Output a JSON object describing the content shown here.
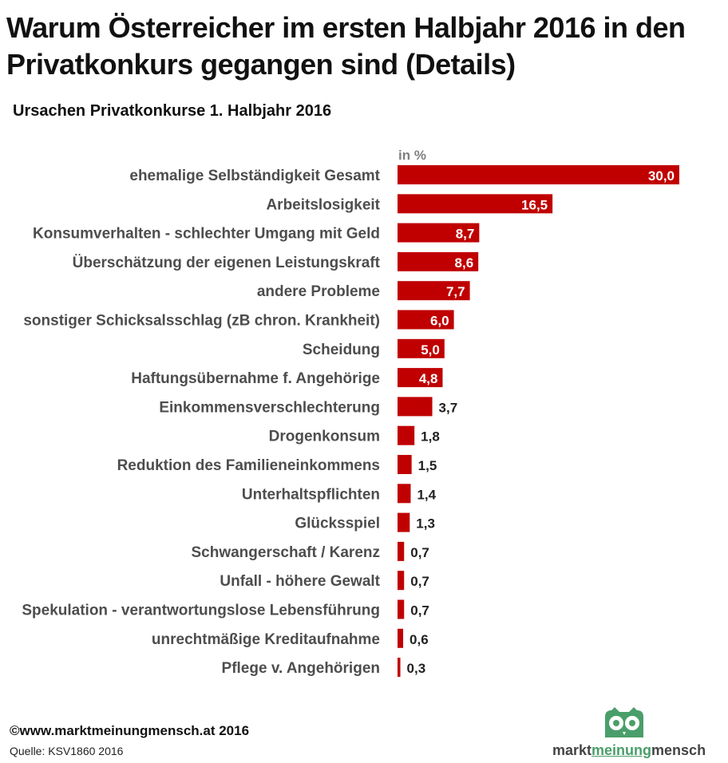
{
  "title": "Warum Österreicher im ersten Halbjahr 2016 in den Privatkonkurs gegangen sind (Details)",
  "subtitle": "Ursachen Privatkonkurse 1. Halbjahr 2016",
  "footer": {
    "copyright": "©www.marktmeinungmensch.at 2016",
    "source": "Quelle: KSV1860 2016",
    "logo_text_part1": "markt",
    "logo_text_part2": "meinung",
    "logo_text_part3": "mensch"
  },
  "colors": {
    "bar": "#c00000",
    "brand_green": "#4a9e6a"
  },
  "chart_data": {
    "type": "bar",
    "orientation": "horizontal",
    "unit_label": "in %",
    "categories": [
      "ehemalige Selbständigkeit Gesamt",
      "Arbeitslosigkeit",
      "Konsumverhalten - schlechter Umgang mit Geld",
      "Überschätzung der eigenen Leistungskraft",
      "andere Probleme",
      "sonstiger Schicksalsschlag (zB chron. Krankheit)",
      "Scheidung",
      "Haftungsübernahme f. Angehörige",
      "Einkommensverschlechterung",
      "Drogenkonsum",
      "Reduktion des Familieneinkommens",
      "Unterhaltspflichten",
      "Glücksspiel",
      "Schwangerschaft / Karenz",
      "Unfall - höhere Gewalt",
      "Spekulation - verantwortungslose Lebensführung",
      "unrechtmäßige Kreditaufnahme",
      "Pflege v. Angehörigen"
    ],
    "values": [
      30.0,
      16.5,
      8.7,
      8.6,
      7.7,
      6.0,
      5.0,
      4.8,
      3.7,
      1.8,
      1.5,
      1.4,
      1.3,
      0.7,
      0.7,
      0.7,
      0.6,
      0.3
    ],
    "value_labels": [
      "30,0",
      "16,5",
      "8,7",
      "8,6",
      "7,7",
      "6,0",
      "5,0",
      "4,8",
      "3,7",
      "1,8",
      "1,5",
      "1,4",
      "1,3",
      "0,7",
      "0,7",
      "0,7",
      "0,6",
      "0,3"
    ],
    "xlim": [
      0,
      30
    ],
    "grid": false,
    "legend": "none"
  }
}
